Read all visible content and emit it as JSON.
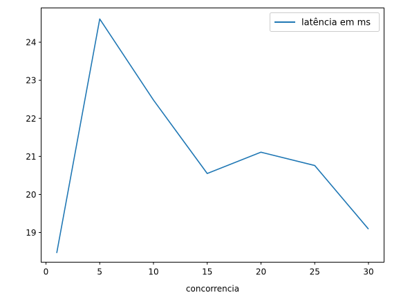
{
  "chart_data": {
    "type": "line",
    "title": "",
    "xlabel": "concorrencia",
    "ylabel": "",
    "xlim": [
      -0.45,
      31.45
    ],
    "ylim": [
      18.22,
      24.9
    ],
    "x_ticks": [
      0,
      5,
      10,
      15,
      20,
      25,
      30
    ],
    "y_ticks": [
      19,
      20,
      21,
      22,
      23,
      24
    ],
    "grid": false,
    "legend_position": "top-right",
    "series": [
      {
        "name": "latência em ms",
        "color": "#1f77b4",
        "x": [
          1,
          5,
          10,
          15,
          20,
          25,
          30
        ],
        "y": [
          18.46,
          24.61,
          22.48,
          20.55,
          21.11,
          20.76,
          19.09
        ]
      }
    ]
  }
}
